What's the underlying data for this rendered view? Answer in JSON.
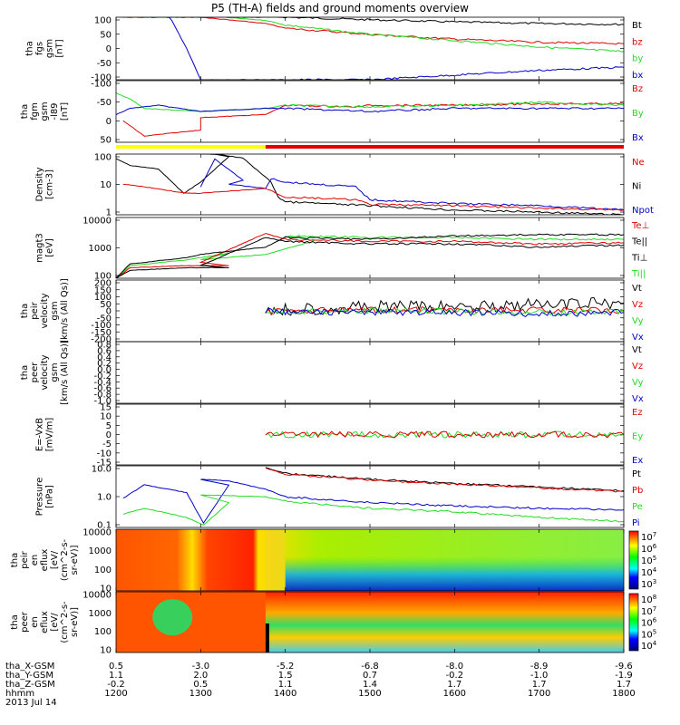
{
  "title": "P5 (TH-A) fields and ground moments overview",
  "date_label": "2013 Jul 14",
  "time_ticks": [
    "1200",
    "1300",
    "1400",
    "1500",
    "1600",
    "1700",
    "1800"
  ],
  "orbit_table": {
    "labels": [
      "tha_X-GSM",
      "tha_Y-GSM",
      "tha_Z-GSM",
      "hhmm"
    ],
    "rows": [
      [
        "0.5",
        "-3.0",
        "-5.2",
        "-6.8",
        "-8.0",
        "-8.9",
        "-9.6"
      ],
      [
        "1.1",
        "2.0",
        "1.5",
        "0.7",
        "-0.2",
        "-1.0",
        "-1.9"
      ],
      [
        "-0.2",
        "0.5",
        "1.1",
        "1.4",
        "1.7",
        "1.7",
        "1.7"
      ]
    ]
  },
  "colors": {
    "black": "#000000",
    "red": "#e00000",
    "green": "#22dd22",
    "blue": "#0000cc",
    "yellow": "#ffff00"
  },
  "mode_bar": {
    "yellow_until": "1346",
    "colors": [
      "yellow",
      "red"
    ]
  },
  "chart_data": [
    {
      "type": "line",
      "ylabel": "tha\nfgs\ngsm\n[nT]",
      "yticks": [
        "100",
        "50",
        "0",
        "-50",
        "-100"
      ],
      "ylim": [
        -100,
        100
      ],
      "legend": [
        {
          "name": "Bt",
          "color": "black"
        },
        {
          "name": "bz",
          "color": "red"
        },
        {
          "name": "by",
          "color": "green"
        },
        {
          "name": "bx",
          "color": "blue"
        }
      ],
      "series": [
        {
          "name": "Bt",
          "x": [
            1205,
            1300,
            1346,
            1400,
            1500,
            1600,
            1700,
            1800
          ],
          "y": [
            120,
            115,
            105,
            100,
            92,
            85,
            80,
            77
          ]
        },
        {
          "name": "bz",
          "x": [
            1205,
            1300,
            1346,
            1400,
            1500,
            1600,
            1700,
            1800
          ],
          "y": [
            115,
            100,
            80,
            65,
            45,
            30,
            20,
            15
          ]
        },
        {
          "name": "by",
          "x": [
            1205,
            1300,
            1346,
            1400,
            1500,
            1600,
            1700,
            1800
          ],
          "y": [
            118,
            105,
            90,
            75,
            45,
            25,
            5,
            -10
          ]
        },
        {
          "name": "bx",
          "x": [
            1236,
            1243,
            1250,
            1258,
            1260,
            1400,
            1500,
            1600,
            1700,
            1800
          ],
          "y": [
            120,
            60,
            0,
            -80,
            -100,
            -100,
            -100,
            -85,
            -70,
            -60
          ]
        }
      ]
    },
    {
      "type": "line",
      "ylabel": "tha\nfgm\ngsm\n-l89\n[nT]",
      "yticks": [
        "-100",
        "-50",
        "0",
        "50"
      ],
      "ylim": [
        -130,
        70
      ],
      "legend": [
        {
          "name": "Bz",
          "color": "red"
        },
        {
          "name": "By",
          "color": "green"
        },
        {
          "name": "Bx",
          "color": "blue"
        }
      ],
      "series": [
        {
          "name": "Bz",
          "x": [
            1205,
            1220,
            1260,
            1300,
            1346,
            1400,
            1450,
            1500,
            1600,
            1700,
            1800
          ],
          "y": [
            -60,
            -110,
            -90,
            -50,
            -40,
            -10,
            -15,
            -10,
            -10,
            -5,
            -5
          ]
        },
        {
          "name": "By",
          "x": [
            1200,
            1210,
            1220,
            1300,
            1346,
            1400,
            1500,
            1600,
            1700,
            1800
          ],
          "y": [
            30,
            10,
            -20,
            -30,
            -20,
            -10,
            -15,
            -10,
            0,
            -10
          ]
        },
        {
          "name": "Bx",
          "x": [
            1200,
            1210,
            1230,
            1300,
            1346,
            1400,
            1500,
            1600,
            1700,
            1800
          ],
          "y": [
            -40,
            -20,
            -10,
            -30,
            -20,
            -20,
            -30,
            -20,
            -20,
            -20
          ]
        }
      ]
    },
    {
      "type": "line",
      "ylabel": "Density\n[cm-3]",
      "ylog": true,
      "yticks": [
        "100",
        "10",
        "1"
      ],
      "ylim": [
        0.3,
        200
      ],
      "legend": [
        {
          "name": "Ne",
          "color": "red"
        },
        {
          "name": "Ni",
          "color": "black"
        },
        {
          "name": "Npot",
          "color": "blue"
        }
      ],
      "series": [
        {
          "name": "Ni",
          "x": [
            1200,
            1210,
            1230,
            1248,
            1260,
            1280,
            1300,
            1330,
            1350,
            1355,
            1400,
            1500,
            1600,
            1700,
            1800
          ],
          "y": [
            120,
            60,
            40,
            3,
            10,
            150,
            250,
            130,
            10,
            2,
            1.2,
            0.8,
            0.5,
            0.4,
            0.3
          ]
        },
        {
          "name": "Npot",
          "x": [
            1260,
            1270,
            1290,
            1320,
            1346,
            1350,
            1400,
            1450,
            1500,
            1600,
            1700,
            1800
          ],
          "y": [
            6,
            120,
            12,
            8,
            5,
            15,
            10,
            6,
            1.5,
            1.0,
            0.8,
            0.5
          ]
        },
        {
          "name": "Ne",
          "x": [
            1205,
            1220,
            1250,
            1300,
            1346,
            1350,
            1400,
            1450,
            1500,
            1600,
            1700,
            1800
          ],
          "y": [
            8,
            6,
            3,
            3,
            5,
            4,
            2,
            1.5,
            0.9,
            0.8,
            0.6,
            0.5
          ]
        }
      ]
    },
    {
      "type": "line",
      "ylabel": "magt3\n[eV]",
      "ylog": true,
      "yticks": [
        "10000",
        "1000",
        "100"
      ],
      "ylim": [
        100,
        20000
      ],
      "legend": [
        {
          "name": "Te⊥",
          "color": "red"
        },
        {
          "name": "Te||",
          "color": "black"
        },
        {
          "name": "Ti⊥",
          "color": "black"
        },
        {
          "name": "Ti||",
          "color": "green"
        }
      ],
      "series": [
        {
          "name": "Ti||",
          "x": [
            1200,
            1210,
            1250,
            1280,
            1300,
            1346,
            1380,
            1400,
            1500,
            1600,
            1700,
            1800
          ],
          "y": [
            100,
            300,
            500,
            900,
            500,
            800,
            2500,
            4000,
            3500,
            3500,
            3000,
            3000
          ]
        },
        {
          "name": "Te⊥",
          "x": [
            1200,
            1210,
            1250,
            1280,
            1300,
            1346,
            1400,
            1500,
            1600,
            1700,
            1800
          ],
          "y": [
            100,
            250,
            300,
            300,
            400,
            5000,
            3000,
            2500,
            2500,
            2000,
            2200
          ]
        },
        {
          "name": "Te||",
          "x": [
            1200,
            1210,
            1250,
            1280,
            1300,
            1346,
            1400,
            1500,
            1600,
            1700,
            1800
          ],
          "y": [
            100,
            200,
            250,
            250,
            300,
            3500,
            2500,
            2000,
            2000,
            1500,
            1800
          ]
        },
        {
          "name": "Ti⊥",
          "x": [
            1200,
            1210,
            1250,
            1300,
            1346,
            1400,
            1500,
            1600,
            1700,
            1800
          ],
          "y": [
            100,
            350,
            600,
            800,
            1500,
            3500,
            3000,
            4000,
            4500,
            4500
          ]
        }
      ]
    },
    {
      "type": "line",
      "ylabel": "tha\npeir\nvelocity\ngsm\n[km/s (All Qs)]",
      "yticks": [
        "200",
        "150",
        "100",
        "50",
        "0",
        "-50",
        "-100",
        "-150",
        "-200"
      ],
      "ylim": [
        -200,
        200
      ],
      "legend": [
        {
          "name": "Vt",
          "color": "black"
        },
        {
          "name": "Vz",
          "color": "red"
        },
        {
          "name": "Vy",
          "color": "green"
        },
        {
          "name": "Vx",
          "color": "blue"
        }
      ],
      "series": [
        {
          "name": "Vt",
          "x": [
            1346,
            1400,
            1440,
            1500,
            1600,
            1700,
            1800
          ],
          "y": [
            0,
            10,
            20,
            25,
            30,
            40,
            50
          ]
        },
        {
          "name": "Vz",
          "x": [
            1346,
            1400,
            1500,
            1600,
            1700,
            1800
          ],
          "y": [
            0,
            0,
            5,
            5,
            5,
            0
          ]
        },
        {
          "name": "Vy",
          "x": [
            1346,
            1400,
            1500,
            1600,
            1700,
            1800
          ],
          "y": [
            0,
            0,
            0,
            -5,
            -10,
            -5
          ]
        },
        {
          "name": "Vx",
          "x": [
            1346,
            1400,
            1500,
            1600,
            1700,
            1800
          ],
          "y": [
            0,
            -5,
            -10,
            -10,
            -20,
            -10
          ]
        }
      ]
    },
    {
      "type": "line",
      "ylabel": "tha\npeer\nvelocity\ngsm\n[km/s (All Qs)]",
      "yticks": [
        "0.8",
        "0.6",
        "0.4",
        "0.2",
        "0.0",
        "-0.2",
        "-0.4",
        "-0.6",
        "-0.8",
        "-1.0"
      ],
      "ylim": [
        -1.0,
        1.0
      ],
      "legend": [
        {
          "name": "Vt",
          "color": "black"
        },
        {
          "name": "Vz",
          "color": "red"
        },
        {
          "name": "Vy",
          "color": "green"
        },
        {
          "name": "Vx",
          "color": "blue"
        }
      ],
      "series": []
    },
    {
      "type": "line",
      "ylabel": "E=-VxB\n[mV/m]",
      "yticks": [
        "15",
        "10",
        "5",
        "0",
        "-5",
        "-10",
        "-15"
      ],
      "ylim": [
        -15,
        15
      ],
      "legend": [
        {
          "name": "Ez",
          "color": "red"
        },
        {
          "name": "Ey",
          "color": "green"
        },
        {
          "name": "Ex",
          "color": "blue"
        }
      ],
      "series": [
        {
          "name": "Ey",
          "x": [
            1346,
            1400,
            1500,
            1600,
            1700,
            1800
          ],
          "y": [
            0,
            0,
            0,
            0,
            0,
            0
          ]
        },
        {
          "name": "Ez",
          "x": [
            1346,
            1400,
            1500,
            1600,
            1700,
            1800
          ],
          "y": [
            0,
            0,
            0,
            0,
            0,
            0
          ]
        }
      ]
    },
    {
      "type": "line",
      "ylabel": "Pressure\n[nPa]",
      "ylog": true,
      "yticks": [
        "10.0",
        "1.0",
        "0.1"
      ],
      "ylim": [
        0.03,
        50
      ],
      "legend": [
        {
          "name": "Pt",
          "color": "black"
        },
        {
          "name": "Pb",
          "color": "red"
        },
        {
          "name": "Pe",
          "color": "green"
        },
        {
          "name": "Pi",
          "color": "blue"
        }
      ],
      "series": [
        {
          "name": "Pt",
          "x": [
            1346,
            1400,
            1500,
            1600,
            1700,
            1800
          ],
          "y": [
            40,
            20,
            10,
            6,
            4,
            2.5
          ]
        },
        {
          "name": "Pb",
          "x": [
            1346,
            1400,
            1500,
            1600,
            1700,
            1800
          ],
          "y": [
            38,
            18,
            9,
            5.5,
            3.5,
            2.2
          ]
        },
        {
          "name": "Pi",
          "x": [
            1205,
            1220,
            1250,
            1262,
            1280,
            1300,
            1320,
            1346,
            1400,
            1500,
            1600,
            1700,
            1800
          ],
          "y": [
            1,
            5,
            2,
            0.05,
            5,
            10,
            8,
            3,
            1.2,
            0.6,
            0.4,
            0.3,
            0.25
          ]
        },
        {
          "name": "Pe",
          "x": [
            1205,
            1220,
            1250,
            1262,
            1280,
            1300,
            1346,
            1400,
            1500,
            1600,
            1700,
            1800
          ],
          "y": [
            0.15,
            0.3,
            0.1,
            0.04,
            0.6,
            1.5,
            1.2,
            0.7,
            0.3,
            0.2,
            0.1,
            0.06
          ]
        }
      ]
    },
    {
      "type": "heatmap",
      "ylabel": "tha\npeir\nen\neflux\n[eV/\n(cm^2-s-\nsr-eV)]",
      "yticks": [
        "10000",
        "1000",
        "100",
        "10"
      ],
      "colorbar_ticks": [
        "10^7",
        "10^6",
        "10^5",
        "10^4",
        "10^3"
      ]
    },
    {
      "type": "heatmap",
      "ylabel": "tha\npeer\nen\neflux\n[eV/\n(cm^2-s-\nsr-eV)]",
      "yticks": [
        "10000",
        "1000",
        "100",
        "10"
      ],
      "colorbar_ticks": [
        "10^8",
        "10^7",
        "10^6",
        "10^5",
        "10^4"
      ]
    }
  ]
}
